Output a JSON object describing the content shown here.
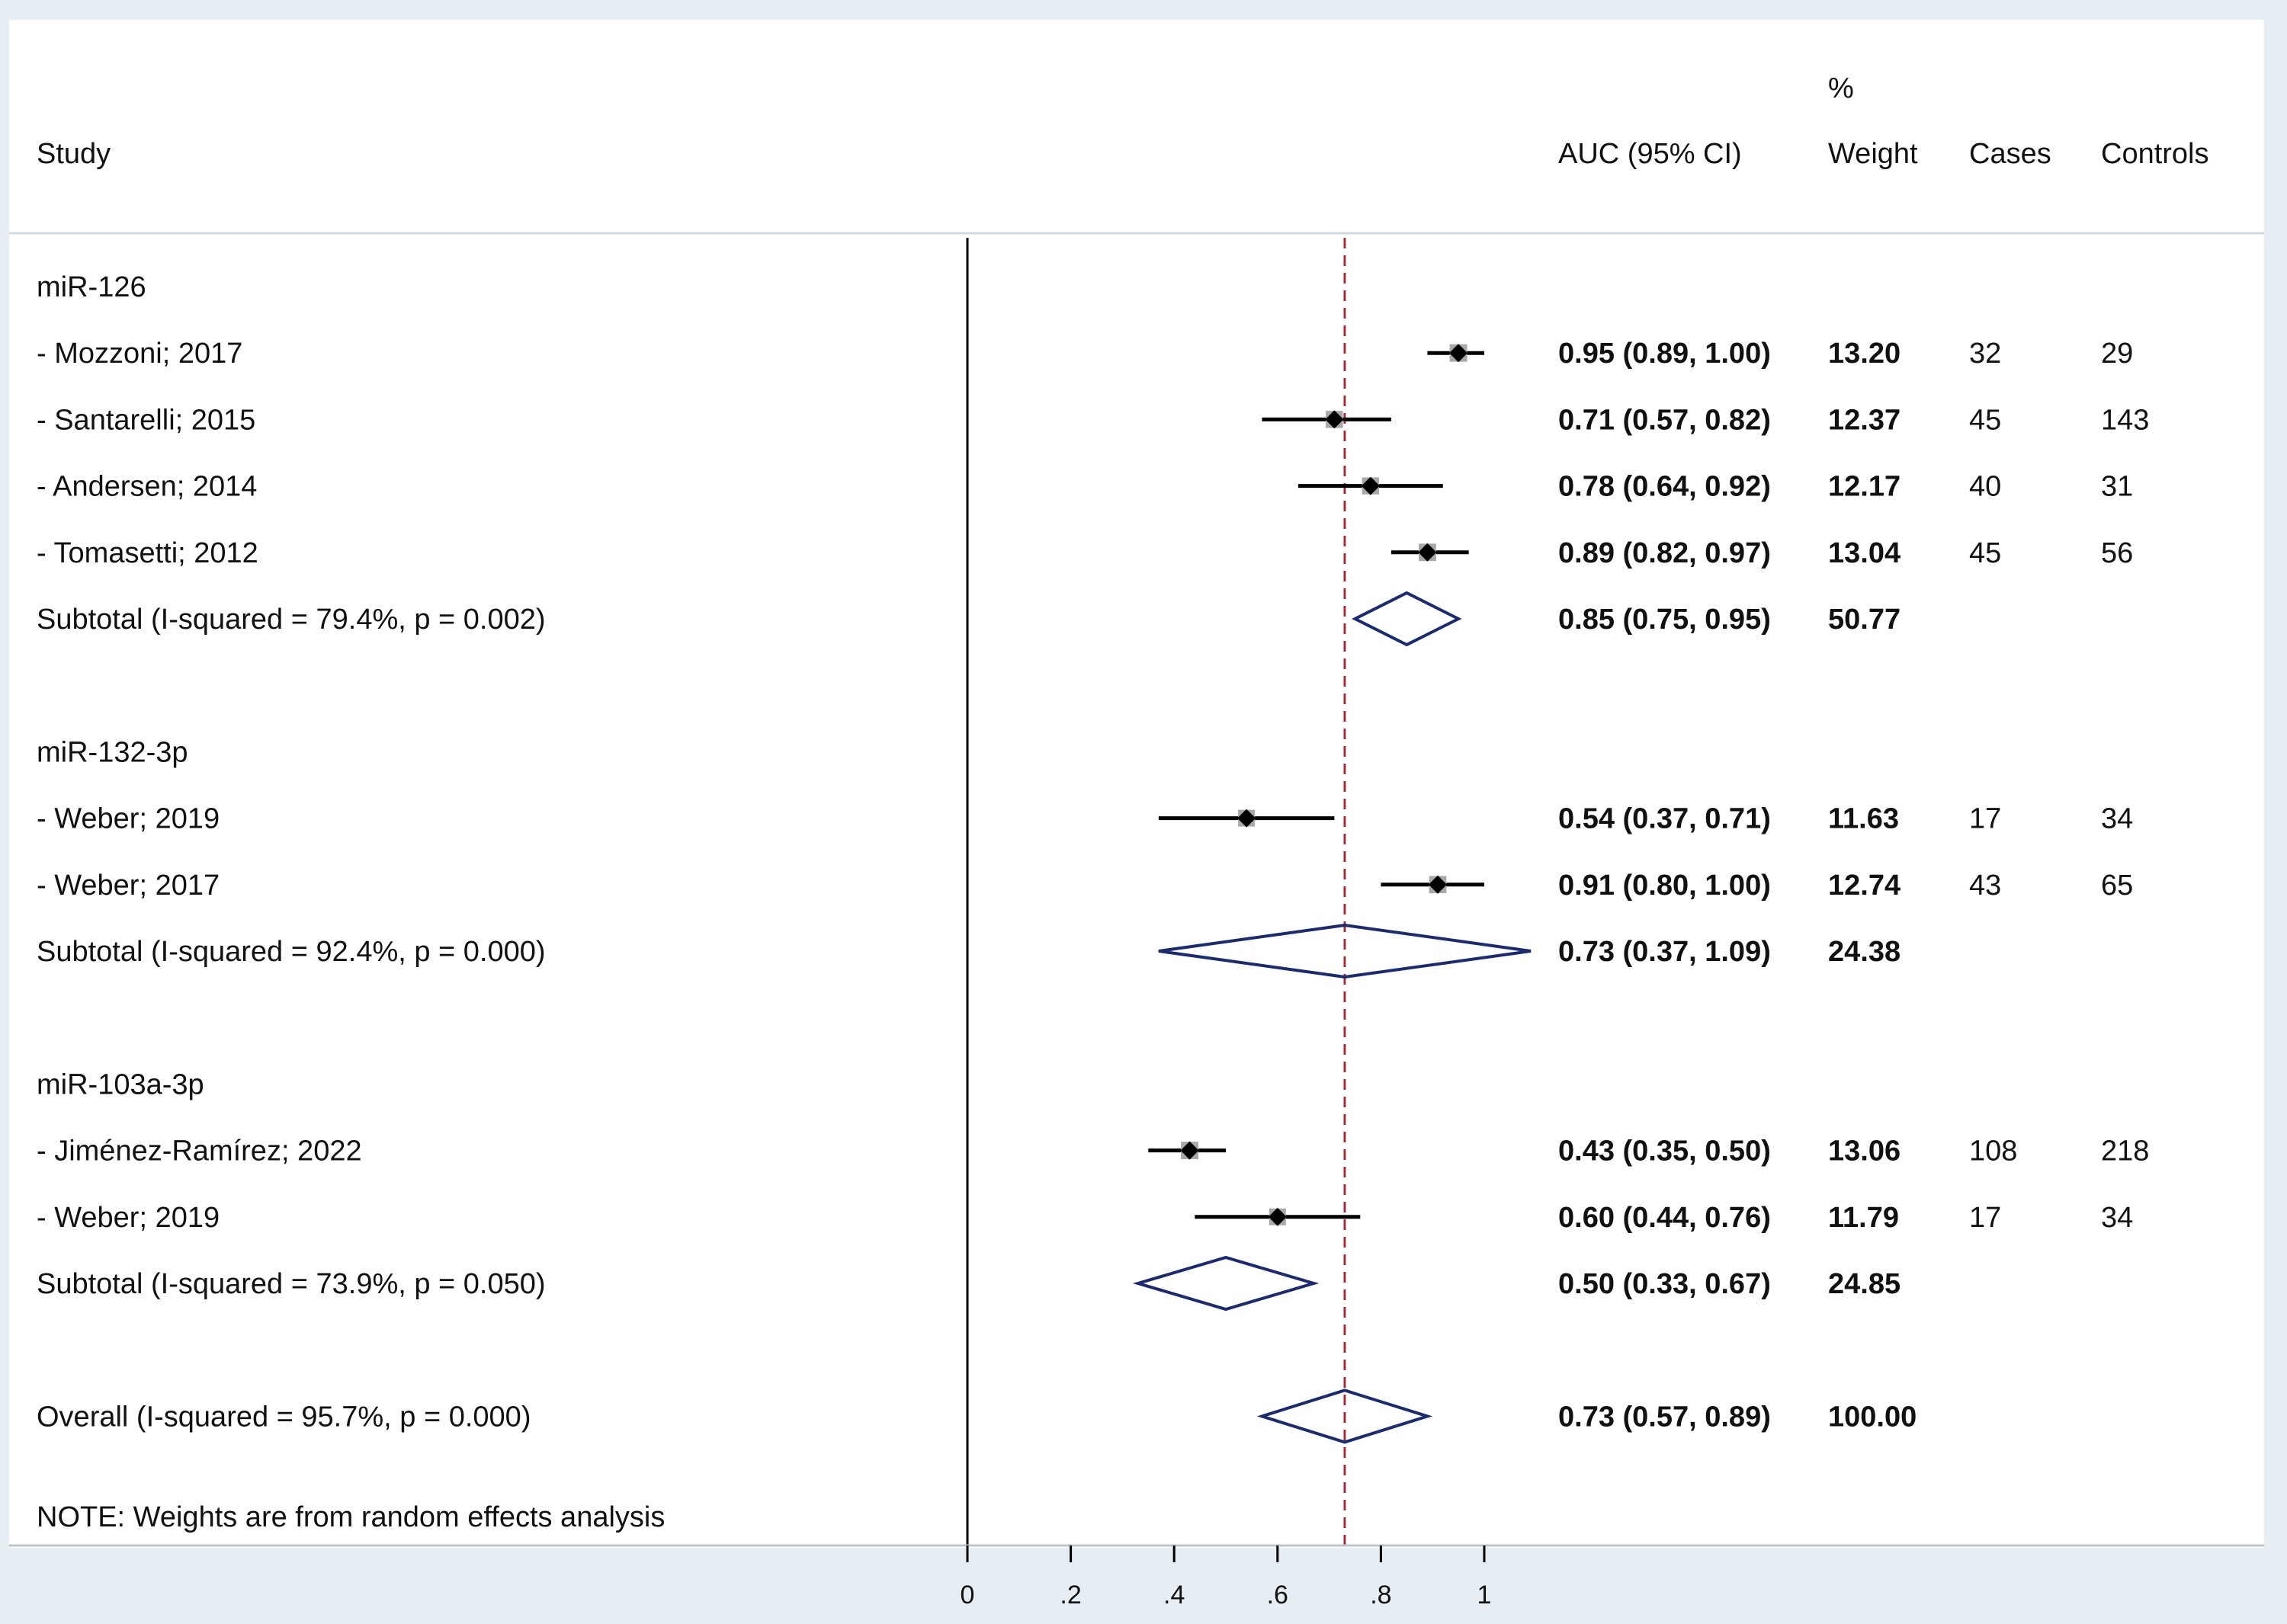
{
  "chart_data": {
    "type": "forest",
    "headers": {
      "study": "Study",
      "auc": "AUC (95% CI)",
      "weight_top": "%",
      "weight": "Weight",
      "cases": "Cases",
      "controls": "Controls"
    },
    "xaxis": {
      "ticks": [
        0,
        0.2,
        0.4,
        0.6,
        0.8,
        1
      ],
      "tick_labels": [
        "0",
        ".2",
        ".4",
        ".6",
        ".8",
        "1"
      ],
      "xlim": [
        0,
        1
      ]
    },
    "reference_line": {
      "value": 0,
      "style": "solid"
    },
    "overall_line": {
      "value": 0.73,
      "style": "dashed",
      "color": "#a0303c"
    },
    "rows": [
      {
        "kind": "group",
        "label": "miR-126"
      },
      {
        "kind": "study",
        "label": "- Mozzoni; 2017",
        "est": 0.95,
        "lo": 0.89,
        "hi": 1.0,
        "ci_text": "0.95 (0.89, 1.00)",
        "weight": "13.20",
        "cases": "32",
        "controls": "29"
      },
      {
        "kind": "study",
        "label": "- Santarelli; 2015",
        "est": 0.71,
        "lo": 0.57,
        "hi": 0.82,
        "ci_text": "0.71 (0.57, 0.82)",
        "weight": "12.37",
        "cases": "45",
        "controls": "143"
      },
      {
        "kind": "study",
        "label": "- Andersen; 2014",
        "est": 0.78,
        "lo": 0.64,
        "hi": 0.92,
        "ci_text": "0.78 (0.64, 0.92)",
        "weight": "12.17",
        "cases": "40",
        "controls": "31"
      },
      {
        "kind": "study",
        "label": "- Tomasetti; 2012",
        "est": 0.89,
        "lo": 0.82,
        "hi": 0.97,
        "ci_text": "0.89 (0.82, 0.97)",
        "weight": "13.04",
        "cases": "45",
        "controls": "56"
      },
      {
        "kind": "subtotal",
        "label": "Subtotal  (I-squared = 79.4%, p = 0.002)",
        "est": 0.85,
        "lo": 0.75,
        "hi": 0.95,
        "ci_text": "0.85 (0.75, 0.95)",
        "weight": "50.77"
      },
      {
        "kind": "spacer"
      },
      {
        "kind": "group",
        "label": "miR-132-3p"
      },
      {
        "kind": "study",
        "label": "- Weber; 2019",
        "est": 0.54,
        "lo": 0.37,
        "hi": 0.71,
        "ci_text": "0.54 (0.37, 0.71)",
        "weight": "11.63",
        "cases": "17",
        "controls": "34"
      },
      {
        "kind": "study",
        "label": "- Weber; 2017",
        "est": 0.91,
        "lo": 0.8,
        "hi": 1.0,
        "ci_text": "0.91 (0.80, 1.00)",
        "weight": "12.74",
        "cases": "43",
        "controls": "65"
      },
      {
        "kind": "subtotal",
        "label": "Subtotal  (I-squared = 92.4%, p = 0.000)",
        "est": 0.73,
        "lo": 0.37,
        "hi": 1.09,
        "ci_text": "0.73 (0.37, 1.09)",
        "weight": "24.38"
      },
      {
        "kind": "spacer"
      },
      {
        "kind": "group",
        "label": "miR-103a-3p"
      },
      {
        "kind": "study",
        "label": "- Jiménez-Ramírez; 2022",
        "est": 0.43,
        "lo": 0.35,
        "hi": 0.5,
        "ci_text": "0.43 (0.35, 0.50)",
        "weight": "13.06",
        "cases": "108",
        "controls": "218"
      },
      {
        "kind": "study",
        "label": "- Weber; 2019",
        "est": 0.6,
        "lo": 0.44,
        "hi": 0.76,
        "ci_text": "0.60 (0.44, 0.76)",
        "weight": "11.79",
        "cases": "17",
        "controls": "34"
      },
      {
        "kind": "subtotal",
        "label": "Subtotal  (I-squared = 73.9%, p = 0.050)",
        "est": 0.5,
        "lo": 0.33,
        "hi": 0.67,
        "ci_text": "0.50 (0.33, 0.67)",
        "weight": "24.85"
      },
      {
        "kind": "spacer"
      },
      {
        "kind": "overall",
        "label": "Overall  (I-squared = 95.7%, p = 0.000)",
        "est": 0.73,
        "lo": 0.57,
        "hi": 0.89,
        "ci_text": "0.73 (0.57, 0.89)",
        "weight": "100.00"
      }
    ],
    "note": "NOTE: Weights are from random effects analysis",
    "colors": {
      "diamond": "#1c2a6e",
      "marker_box": "#a8a8a8",
      "ci_line": "#000000",
      "dashed": "#a0303c",
      "background": "#e6eef4",
      "panel": "#ffffff"
    }
  }
}
